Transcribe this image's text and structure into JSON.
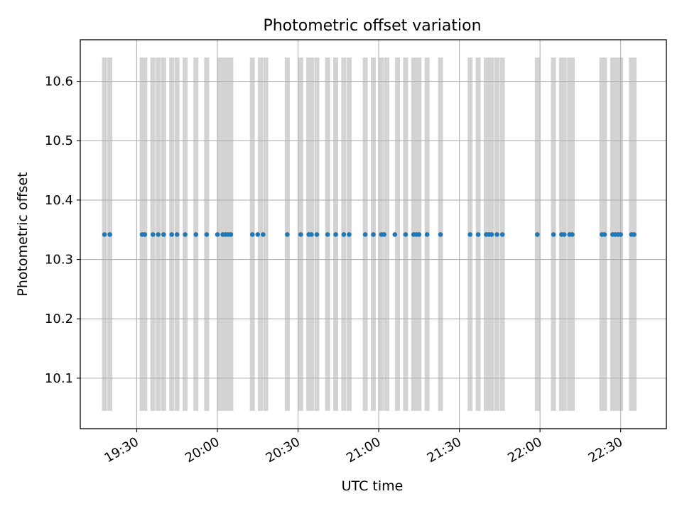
{
  "chart_data": {
    "type": "scatter",
    "title": "Photometric offset variation",
    "xlabel": "UTC time",
    "ylabel": "Photometric offset",
    "xlim": [
      "19:09",
      "22:47"
    ],
    "ylim": [
      10.015,
      10.67
    ],
    "x_ticks": [
      "19:30",
      "20:00",
      "20:30",
      "21:00",
      "21:30",
      "22:00",
      "22:30"
    ],
    "y_ticks": [
      "10.1",
      "10.2",
      "10.3",
      "10.4",
      "10.5",
      "10.6"
    ],
    "grid": true,
    "series": [
      {
        "marker_color": "#1f77b4",
        "y": 10.342,
        "x": [
          "19:18",
          "19:20",
          "19:32",
          "19:33",
          "19:36",
          "19:38",
          "19:40",
          "19:43",
          "19:45",
          "19:48",
          "19:52",
          "19:56",
          "20:00",
          "20:02",
          "20:03",
          "20:04",
          "20:05",
          "20:13",
          "20:15",
          "20:17",
          "20:26",
          "20:31",
          "20:34",
          "20:35",
          "20:37",
          "20:41",
          "20:44",
          "20:47",
          "20:49",
          "20:55",
          "20:58",
          "21:01",
          "21:02",
          "21:06",
          "21:10",
          "21:13",
          "21:14",
          "21:15",
          "21:18",
          "21:23",
          "21:34",
          "21:37",
          "21:40",
          "21:41",
          "21:42",
          "21:44",
          "21:46",
          "21:59",
          "22:05",
          "22:08",
          "22:09",
          "22:11",
          "22:12",
          "22:23",
          "22:24",
          "22:27",
          "22:28",
          "22:29",
          "22:30",
          "22:34",
          "22:35"
        ]
      }
    ],
    "shaded_spans": {
      "color": "#d3d3d3",
      "y_range": [
        10.045,
        10.64
      ],
      "x": [
        "19:18",
        "19:20",
        "19:32",
        "19:33",
        "19:36",
        "19:38",
        "19:40",
        "19:43",
        "19:45",
        "19:48",
        "19:52",
        "19:56",
        "20:01",
        "20:02",
        "20:03",
        "20:04",
        "20:05",
        "20:13",
        "20:16",
        "20:18",
        "20:26",
        "20:31",
        "20:34",
        "20:35",
        "20:37",
        "20:41",
        "20:44",
        "20:47",
        "20:49",
        "20:55",
        "20:58",
        "21:01",
        "21:03",
        "21:07",
        "21:10",
        "21:13",
        "21:14",
        "21:15",
        "21:18",
        "21:23",
        "21:34",
        "21:37",
        "21:40",
        "21:41",
        "21:42",
        "21:44",
        "21:46",
        "21:59",
        "22:05",
        "22:08",
        "22:09",
        "22:11",
        "22:12",
        "22:23",
        "22:24",
        "22:27",
        "22:28",
        "22:29",
        "22:30",
        "22:34",
        "22:35"
      ]
    }
  }
}
